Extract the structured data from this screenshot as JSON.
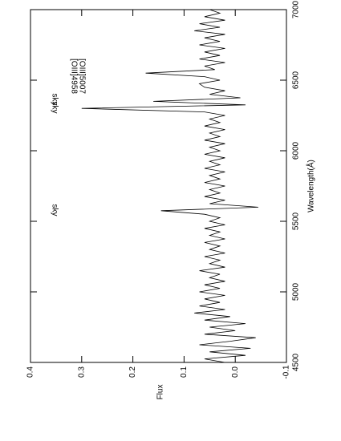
{
  "chart_data": {
    "type": "line",
    "xlabel": "Wavelength(Å)",
    "ylabel": "Flux",
    "x": [
      4500,
      4525,
      4550,
      4575,
      4600,
      4625,
      4650,
      4675,
      4700,
      4725,
      4750,
      4775,
      4800,
      4825,
      4850,
      4875,
      4900,
      4925,
      4950,
      4975,
      5000,
      5025,
      5050,
      5075,
      5100,
      5125,
      5150,
      5175,
      5200,
      5225,
      5250,
      5275,
      5300,
      5325,
      5350,
      5375,
      5400,
      5425,
      5450,
      5475,
      5500,
      5525,
      5550,
      5575,
      5600,
      5625,
      5650,
      5675,
      5700,
      5725,
      5750,
      5775,
      5800,
      5825,
      5850,
      5875,
      5900,
      5925,
      5950,
      5975,
      6000,
      6025,
      6050,
      6075,
      6100,
      6125,
      6150,
      6175,
      6200,
      6225,
      6250,
      6275,
      6300,
      6325,
      6350,
      6375,
      6400,
      6425,
      6450,
      6475,
      6500,
      6525,
      6550,
      6575,
      6600,
      6625,
      6650,
      6675,
      6700,
      6725,
      6750,
      6775,
      6800,
      6825,
      6850,
      6875,
      6900,
      6925,
      6950,
      6975,
      7000
    ],
    "values": [
      0.02,
      0.06,
      -0.02,
      0.05,
      -0.03,
      0.07,
      0.01,
      -0.04,
      0.06,
      0.0,
      0.05,
      -0.02,
      0.06,
      0.01,
      0.08,
      0.02,
      0.07,
      0.03,
      0.06,
      0.02,
      0.07,
      0.03,
      0.06,
      0.02,
      0.05,
      0.03,
      0.07,
      0.02,
      0.05,
      0.03,
      0.06,
      0.02,
      0.05,
      0.03,
      0.06,
      0.02,
      0.05,
      0.03,
      0.06,
      0.02,
      0.05,
      0.03,
      0.06,
      0.145,
      -0.045,
      0.05,
      0.02,
      0.06,
      0.03,
      0.05,
      0.02,
      0.06,
      0.03,
      0.05,
      0.02,
      0.06,
      0.03,
      0.05,
      0.02,
      0.06,
      0.03,
      0.05,
      0.02,
      0.06,
      0.03,
      0.05,
      0.02,
      0.06,
      0.03,
      0.05,
      0.02,
      0.06,
      0.3,
      -0.02,
      0.16,
      -0.01,
      0.05,
      0.02,
      0.06,
      0.07,
      0.03,
      0.06,
      0.175,
      0.04,
      0.06,
      0.02,
      0.07,
      0.03,
      0.06,
      0.02,
      0.07,
      0.03,
      0.06,
      0.02,
      0.08,
      0.03,
      0.07,
      0.02,
      0.06,
      0.03,
      0.05
    ],
    "color": "#000000",
    "xlim": [
      4500,
      7000
    ],
    "xticks": [
      4500,
      5000,
      5500,
      6000,
      6500,
      7000
    ],
    "ylim": [
      -0.1,
      0.4
    ],
    "yticks": [
      -0.1,
      {
        "value": 0,
        "label": "0.0"
      },
      0.1,
      0.2,
      0.3,
      0.4
    ],
    "annotations": [
      "sky",
      "sky",
      "sky",
      "[OIII]4958",
      "[OIII]5007"
    ]
  }
}
